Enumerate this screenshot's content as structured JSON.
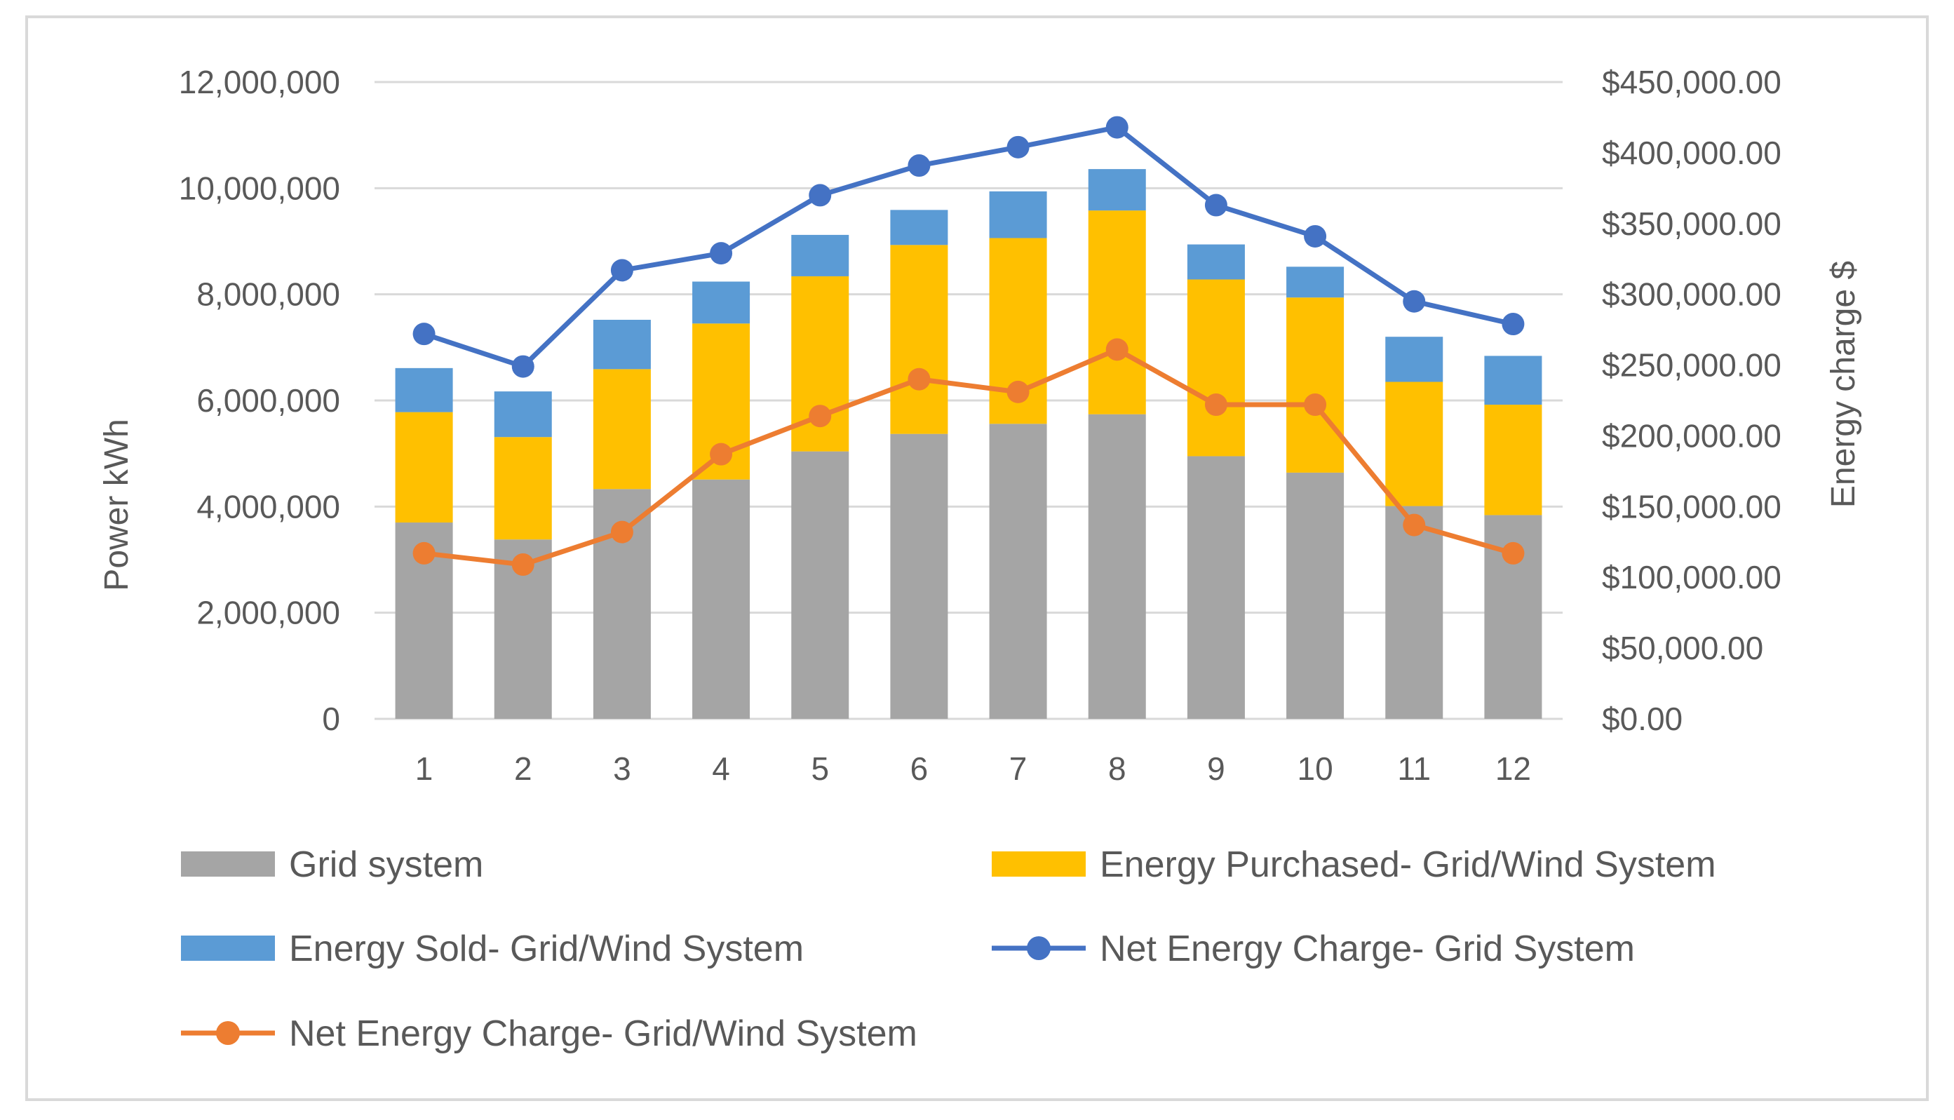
{
  "chart_data": {
    "type": "bar",
    "stacked": true,
    "categories": [
      "1",
      "2",
      "3",
      "4",
      "5",
      "6",
      "7",
      "8",
      "9",
      "10",
      "11",
      "12"
    ],
    "series": [
      {
        "name": "Grid system",
        "kind": "bar",
        "axis": "left",
        "color": "#a5a5a5",
        "values": [
          3700000,
          3380000,
          4330000,
          4510000,
          5040000,
          5370000,
          5560000,
          5740000,
          4950000,
          4640000,
          4010000,
          3840000
        ]
      },
      {
        "name": "Energy Purchased- Grid/Wind System",
        "kind": "bar",
        "axis": "left",
        "color": "#ffc000",
        "values": [
          2080000,
          1930000,
          2260000,
          2940000,
          3300000,
          3560000,
          3500000,
          3840000,
          3330000,
          3300000,
          2340000,
          2080000
        ]
      },
      {
        "name": "Energy Sold- Grid/Wind System",
        "kind": "bar",
        "axis": "left",
        "color": "#5b9bd5",
        "values": [
          830000,
          860000,
          930000,
          790000,
          780000,
          660000,
          880000,
          780000,
          660000,
          580000,
          850000,
          920000
        ]
      },
      {
        "name": "Net Energy Charge- Grid System",
        "kind": "line",
        "axis": "right",
        "color": "#4472c4",
        "values": [
          272000,
          249000,
          317000,
          329000,
          370000,
          391000,
          404000,
          418000,
          363000,
          341000,
          295000,
          279000
        ]
      },
      {
        "name": "Net Energy Charge- Grid/Wind System",
        "kind": "line",
        "axis": "right",
        "color": "#ed7d31",
        "values": [
          117000,
          109000,
          132000,
          187000,
          214000,
          240000,
          231000,
          261000,
          222000,
          222000,
          137000,
          117000
        ]
      }
    ],
    "ylabel": "Power kWh",
    "y2label": "Energy charge $",
    "ylim": [
      0,
      12000000
    ],
    "y2lim": [
      0,
      450000
    ],
    "yticks": [
      "0",
      "2,000,000",
      "4,000,000",
      "6,000,000",
      "8,000,000",
      "10,000,000",
      "12,000,000"
    ],
    "y2ticks": [
      "$0.00",
      "$50,000.00",
      "$100,000.00",
      "$150,000.00",
      "$200,000.00",
      "$250,000.00",
      "$300,000.00",
      "$350,000.00",
      "$400,000.00",
      "$450,000.00"
    ],
    "grid": true,
    "legend": "bottom"
  }
}
